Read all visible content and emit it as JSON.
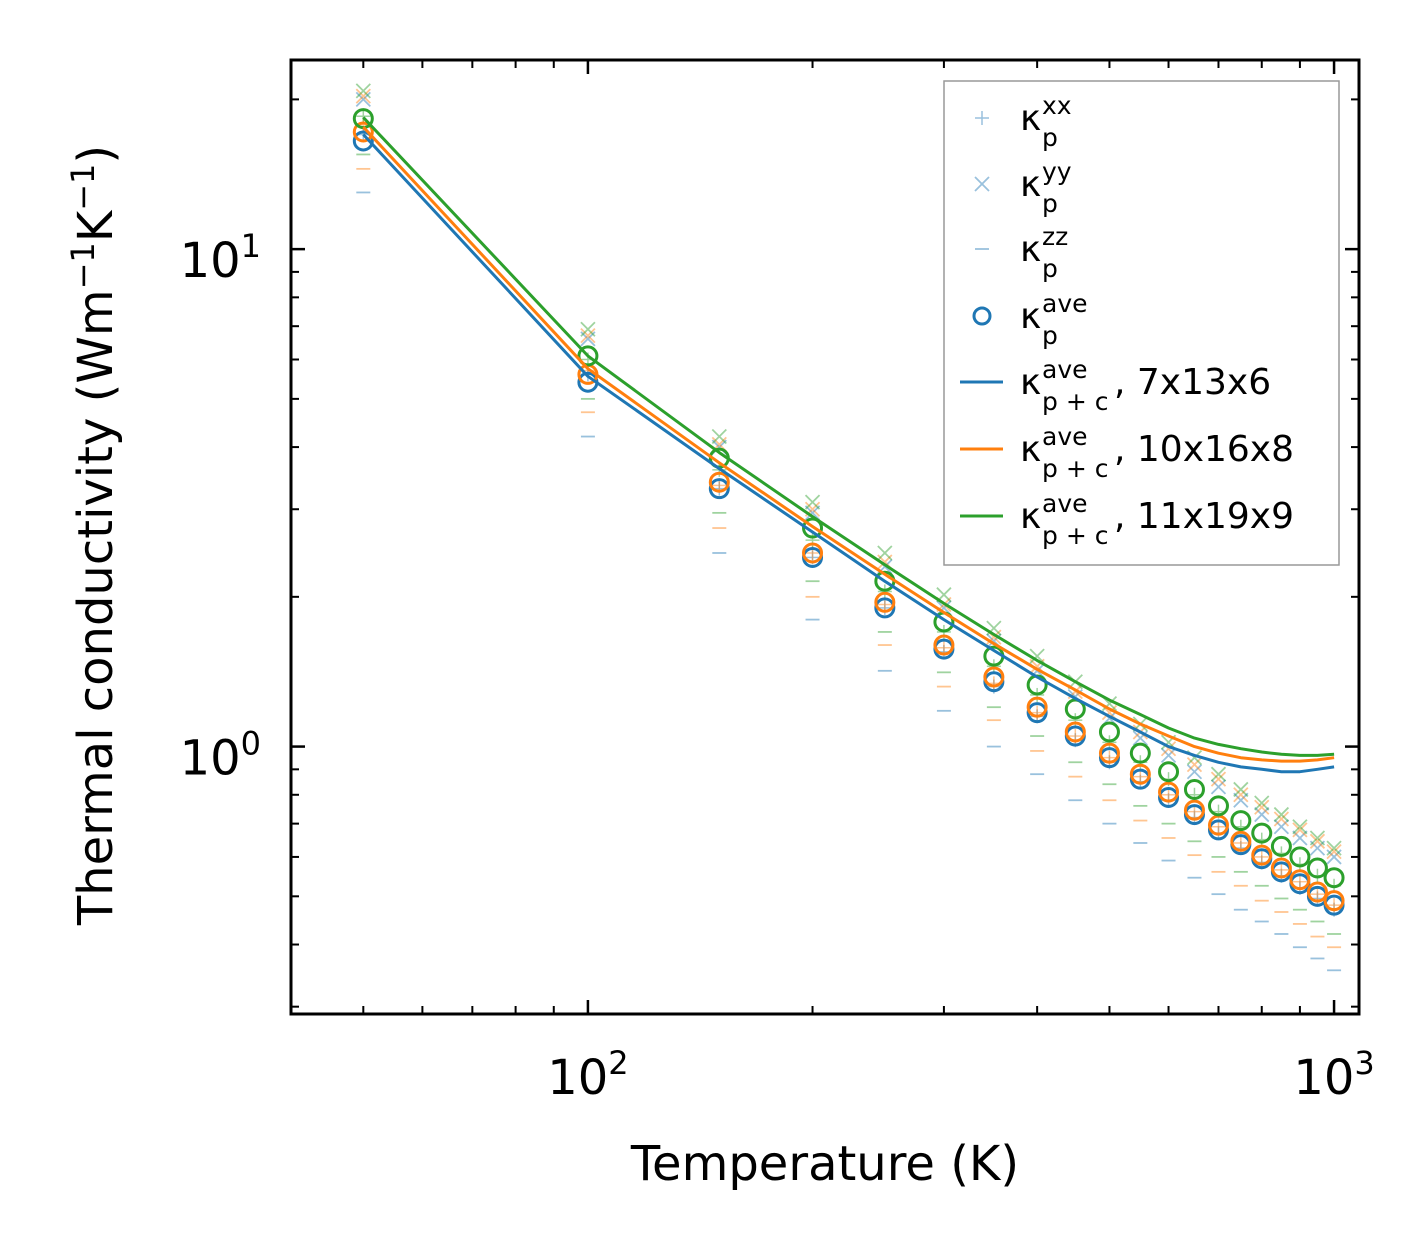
{
  "chart_data": {
    "type": "scatter",
    "xscale": "log",
    "yscale": "log",
    "xlabel": "Temperature (K)",
    "ylabel": "Thermal conductivity (Wm",
    "ylabel_exp1": "−1",
    "ylabel_mid": "K",
    "ylabel_exp2": "−1",
    "ylabel_end": ")",
    "xlim": [
      40,
      1080
    ],
    "ylim": [
      0.29,
      24
    ],
    "xticks": [
      {
        "base": "10",
        "exp": "2",
        "value": 100
      },
      {
        "base": "10",
        "exp": "3",
        "value": 1000
      }
    ],
    "yticks": [
      {
        "base": "10",
        "exp": "0",
        "value": 1
      },
      {
        "base": "10",
        "exp": "1",
        "value": 10
      }
    ],
    "x": [
      50,
      100,
      150,
      200,
      250,
      300,
      350,
      400,
      450,
      500,
      550,
      600,
      650,
      700,
      750,
      800,
      850,
      900,
      950,
      1000
    ],
    "colors": {
      "blue": "#1f77b4",
      "orange": "#ff7f0e",
      "green": "#2ca02c"
    },
    "legend": [
      {
        "base": "κ",
        "sup": "xx",
        "sub": "p",
        "suffix": ""
      },
      {
        "base": "κ",
        "sup": "yy",
        "sub": "p",
        "suffix": ""
      },
      {
        "base": "κ",
        "sup": "zz",
        "sub": "p",
        "suffix": ""
      },
      {
        "base": "κ",
        "sup": "ave",
        "sub": "p",
        "suffix": ""
      },
      {
        "base": "κ",
        "sup": "ave",
        "sub": "p + c",
        "suffix": ", 7x13x6"
      },
      {
        "base": "κ",
        "sup": "ave",
        "sub": "p + c",
        "suffix": ", 10x16x8"
      },
      {
        "base": "κ",
        "sup": "ave",
        "sub": "p + c",
        "suffix": ", 11x19x9"
      }
    ],
    "series": [
      {
        "grid": "7x13x6",
        "color": "#1f77b4",
        "kxx": [
          17.0,
          5.6,
          3.3,
          2.4,
          1.9,
          1.55,
          1.32,
          1.15,
          1.03,
          0.93,
          0.85,
          0.78,
          0.72,
          0.67,
          0.625,
          0.585,
          0.55,
          0.52,
          0.495,
          0.47
        ],
        "kyy": [
          20.0,
          6.6,
          4.0,
          2.95,
          2.3,
          1.9,
          1.63,
          1.42,
          1.26,
          1.14,
          1.04,
          0.96,
          0.89,
          0.83,
          0.78,
          0.73,
          0.69,
          0.655,
          0.625,
          0.6
        ],
        "kzz": [
          13.0,
          4.2,
          2.45,
          1.8,
          1.42,
          1.18,
          1.0,
          0.88,
          0.78,
          0.7,
          0.64,
          0.59,
          0.545,
          0.505,
          0.47,
          0.445,
          0.42,
          0.395,
          0.375,
          0.355
        ],
        "kave": [
          16.5,
          5.4,
          3.3,
          2.4,
          1.9,
          1.57,
          1.35,
          1.17,
          1.05,
          0.95,
          0.86,
          0.79,
          0.73,
          0.68,
          0.635,
          0.595,
          0.56,
          0.53,
          0.5,
          0.48
        ],
        "kpc": [
          17.0,
          5.55,
          3.62,
          2.7,
          2.15,
          1.8,
          1.56,
          1.38,
          1.25,
          1.15,
          1.07,
          1.0,
          0.96,
          0.93,
          0.91,
          0.9,
          0.89,
          0.89,
          0.9,
          0.91
        ]
      },
      {
        "grid": "10x16x8",
        "color": "#ff7f0e",
        "kxx": [
          17.8,
          5.7,
          3.35,
          2.45,
          1.93,
          1.58,
          1.34,
          1.17,
          1.05,
          0.95,
          0.87,
          0.8,
          0.74,
          0.69,
          0.64,
          0.6,
          0.565,
          0.535,
          0.505,
          0.48
        ],
        "kyy": [
          20.3,
          6.7,
          4.05,
          3.0,
          2.35,
          1.93,
          1.66,
          1.45,
          1.29,
          1.17,
          1.07,
          0.99,
          0.92,
          0.86,
          0.8,
          0.755,
          0.715,
          0.68,
          0.645,
          0.615
        ],
        "kzz": [
          14.5,
          4.7,
          2.75,
          2.0,
          1.6,
          1.32,
          1.13,
          0.98,
          0.87,
          0.78,
          0.71,
          0.655,
          0.605,
          0.56,
          0.525,
          0.49,
          0.465,
          0.44,
          0.415,
          0.395
        ],
        "kave": [
          17.2,
          5.6,
          3.4,
          2.45,
          1.95,
          1.6,
          1.38,
          1.2,
          1.07,
          0.97,
          0.88,
          0.81,
          0.745,
          0.695,
          0.645,
          0.605,
          0.57,
          0.54,
          0.51,
          0.49
        ],
        "kpc": [
          17.6,
          5.75,
          3.72,
          2.77,
          2.22,
          1.86,
          1.61,
          1.43,
          1.3,
          1.19,
          1.11,
          1.05,
          1.0,
          0.97,
          0.95,
          0.94,
          0.935,
          0.935,
          0.94,
          0.95
        ]
      },
      {
        "grid": "11x19x9",
        "color": "#2ca02c",
        "kxx": [
          18.5,
          6.0,
          3.6,
          2.6,
          2.05,
          1.7,
          1.45,
          1.27,
          1.13,
          1.02,
          0.93,
          0.86,
          0.8,
          0.74,
          0.69,
          0.65,
          0.61,
          0.58,
          0.55,
          0.525
        ],
        "kyy": [
          20.8,
          6.9,
          4.2,
          3.1,
          2.45,
          2.02,
          1.73,
          1.52,
          1.35,
          1.22,
          1.11,
          1.02,
          0.95,
          0.88,
          0.82,
          0.77,
          0.73,
          0.69,
          0.655,
          0.625
        ],
        "kzz": [
          15.5,
          5.0,
          2.95,
          2.15,
          1.7,
          1.41,
          1.2,
          1.05,
          0.93,
          0.84,
          0.76,
          0.7,
          0.645,
          0.6,
          0.56,
          0.525,
          0.495,
          0.47,
          0.445,
          0.42
        ],
        "kave": [
          18.3,
          6.1,
          3.8,
          2.75,
          2.15,
          1.78,
          1.52,
          1.33,
          1.19,
          1.07,
          0.97,
          0.89,
          0.82,
          0.76,
          0.71,
          0.67,
          0.63,
          0.6,
          0.57,
          0.545
        ],
        "kpc": [
          18.4,
          6.1,
          3.9,
          2.9,
          2.32,
          1.94,
          1.68,
          1.49,
          1.35,
          1.24,
          1.16,
          1.09,
          1.04,
          1.01,
          0.99,
          0.975,
          0.965,
          0.96,
          0.96,
          0.965
        ]
      }
    ]
  }
}
